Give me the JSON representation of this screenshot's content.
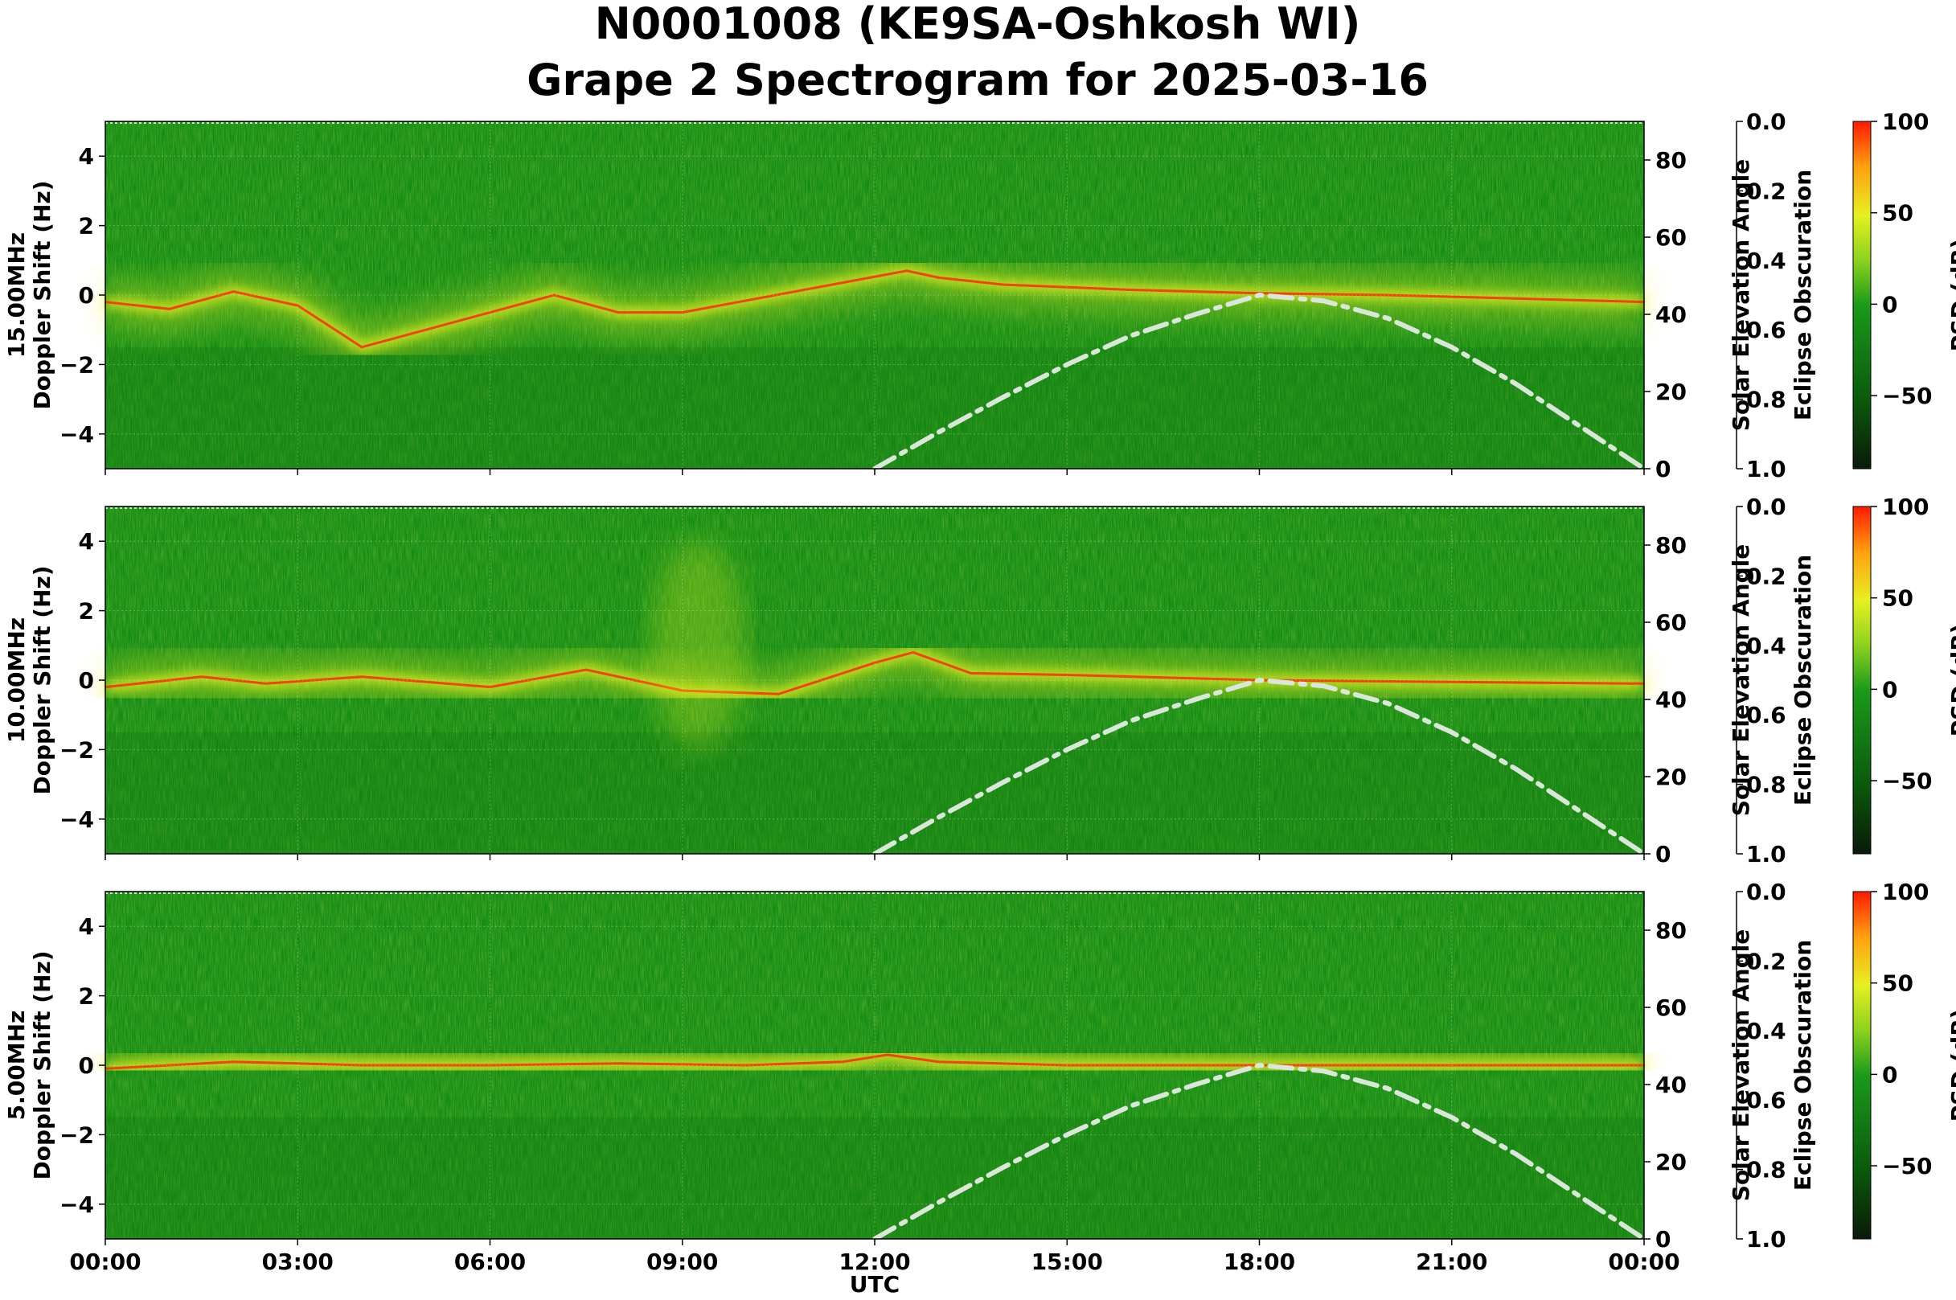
{
  "chart_data": {
    "type": "heatmap",
    "title_line1": "N0001008 (KE9SA-Oshkosh WI)",
    "title_line2": "Grape 2 Spectrogram for 2025-03-16",
    "xlabel": "UTC",
    "x_ticks": [
      "00:00",
      "03:00",
      "06:00",
      "09:00",
      "12:00",
      "15:00",
      "18:00",
      "21:00",
      "00:00"
    ],
    "xlim_hours": [
      0,
      24
    ],
    "ylim_hz": [
      -5,
      5
    ],
    "y_ticks": [
      -4,
      -2,
      0,
      2,
      4
    ],
    "elev_ticks": [
      0,
      20,
      40,
      60,
      80
    ],
    "elev_label": "Solar Elevation Angle",
    "elev_lim": [
      0,
      90
    ],
    "eclipse_ticks": [
      "0.0",
      "0.2",
      "0.4",
      "0.6",
      "0.8",
      "1.0"
    ],
    "eclipse_label": "Eclipse Obscuration",
    "colorbar_label": "PSD (dB)",
    "colorbar_ticks": [
      -50,
      0,
      50,
      100
    ],
    "colorbar_lim": [
      -90,
      100
    ],
    "colors": {
      "background_green": "#148c14",
      "signal_yellow": "#e8f020",
      "signal_red": "#ff2a00",
      "elevation_curve": "#d9e6d9"
    },
    "solar_elevation": {
      "style": "dash-dot",
      "hours": [
        12.0,
        13.0,
        14.0,
        15.0,
        16.0,
        17.0,
        18.0,
        19.0,
        20.0,
        21.0,
        22.0,
        23.0,
        24.0
      ],
      "degrees": [
        0,
        9.5,
        18.5,
        27,
        34.5,
        40,
        45,
        43.5,
        39,
        31.5,
        22,
        11,
        0
      ]
    },
    "panels": [
      {
        "freq_label": "15.00MHz",
        "ylabel": "Doppler Shift (Hz)",
        "carrier_hours": [
          0,
          1,
          2,
          3,
          4,
          5,
          6,
          7,
          8,
          9,
          12.5,
          13,
          14,
          16,
          18,
          20,
          22,
          24
        ],
        "carrier_hz": [
          -0.2,
          -0.4,
          0.1,
          -0.3,
          -1.5,
          -1.0,
          -0.5,
          0.0,
          -0.5,
          -0.5,
          0.7,
          0.5,
          0.3,
          0.15,
          0.05,
          0.0,
          -0.1,
          -0.2
        ]
      },
      {
        "freq_label": "10.00MHz",
        "ylabel": "Doppler Shift (Hz)",
        "carrier_hours": [
          0,
          1.5,
          2.5,
          4,
          6,
          7.5,
          9,
          10.5,
          12,
          12.6,
          13.5,
          15,
          18,
          21,
          24
        ],
        "carrier_hz": [
          -0.2,
          0.1,
          -0.1,
          0.1,
          -0.2,
          0.3,
          -0.3,
          -0.4,
          0.5,
          0.8,
          0.2,
          0.15,
          0.0,
          -0.05,
          -0.1
        ],
        "mid_burst_hours": [
          8.5,
          10.0
        ],
        "mid_burst_hz": [
          -1.0,
          3.0
        ]
      },
      {
        "freq_label": "5.00MHz",
        "ylabel": "Doppler Shift (Hz)",
        "carrier_hours": [
          0,
          2,
          4,
          6,
          8,
          10,
          11.5,
          12.2,
          13,
          15,
          18,
          21,
          24
        ],
        "carrier_hz": [
          -0.1,
          0.1,
          0.0,
          0.0,
          0.05,
          0.0,
          0.1,
          0.3,
          0.1,
          0.0,
          0.0,
          0.0,
          0.0
        ]
      }
    ]
  }
}
